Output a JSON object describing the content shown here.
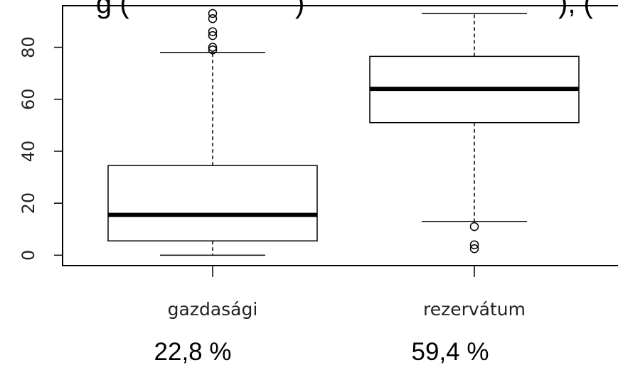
{
  "chart_data": {
    "type": "boxplot",
    "categories": [
      "gazdasági",
      "rezervátum"
    ],
    "boxes": [
      {
        "category": "gazdasági",
        "min": 0,
        "q1": 5.5,
        "median": 15.5,
        "q3": 34.5,
        "max": 78,
        "outliers": [
          79,
          80,
          84.5,
          86,
          91,
          93
        ]
      },
      {
        "category": "rezervátum",
        "min": 13,
        "q1": 51,
        "median": 64,
        "q3": 76.5,
        "max": 93,
        "outliers": [
          11,
          4,
          2.5
        ]
      }
    ],
    "ylim": [
      -4,
      96
    ],
    "yticks": [
      "0",
      "20",
      "40",
      "60",
      "80"
    ],
    "title": "",
    "xlabel": "",
    "ylabel": "",
    "grid": false,
    "annotations": [
      "22,8 %",
      "59,4 %"
    ]
  }
}
